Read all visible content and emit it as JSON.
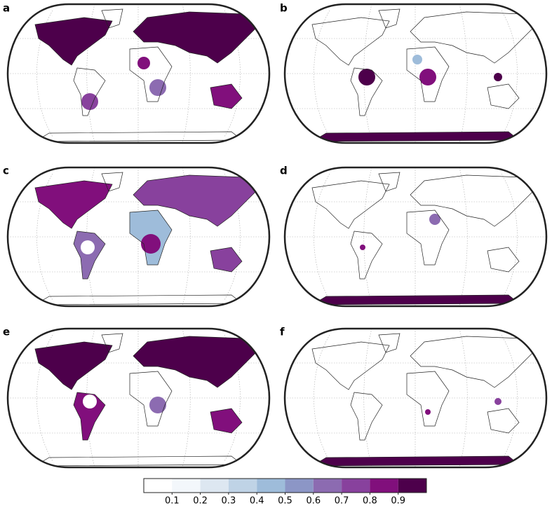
{
  "panels": [
    {
      "label": "a"
    },
    {
      "label": "b"
    },
    {
      "label": "c"
    },
    {
      "label": "d"
    },
    {
      "label": "e"
    },
    {
      "label": "f"
    }
  ],
  "colorbar": {
    "ticks": [
      0.1,
      0.2,
      0.3,
      0.4,
      0.5,
      0.6,
      0.7,
      0.8,
      0.9
    ],
    "colors": [
      "#ffffff",
      "#f3f7fb",
      "#dde7f1",
      "#bfd3e6",
      "#9ebcda",
      "#8c96c6",
      "#8c6bb1",
      "#88419d",
      "#810f7c",
      "#4d004b"
    ]
  }
}
